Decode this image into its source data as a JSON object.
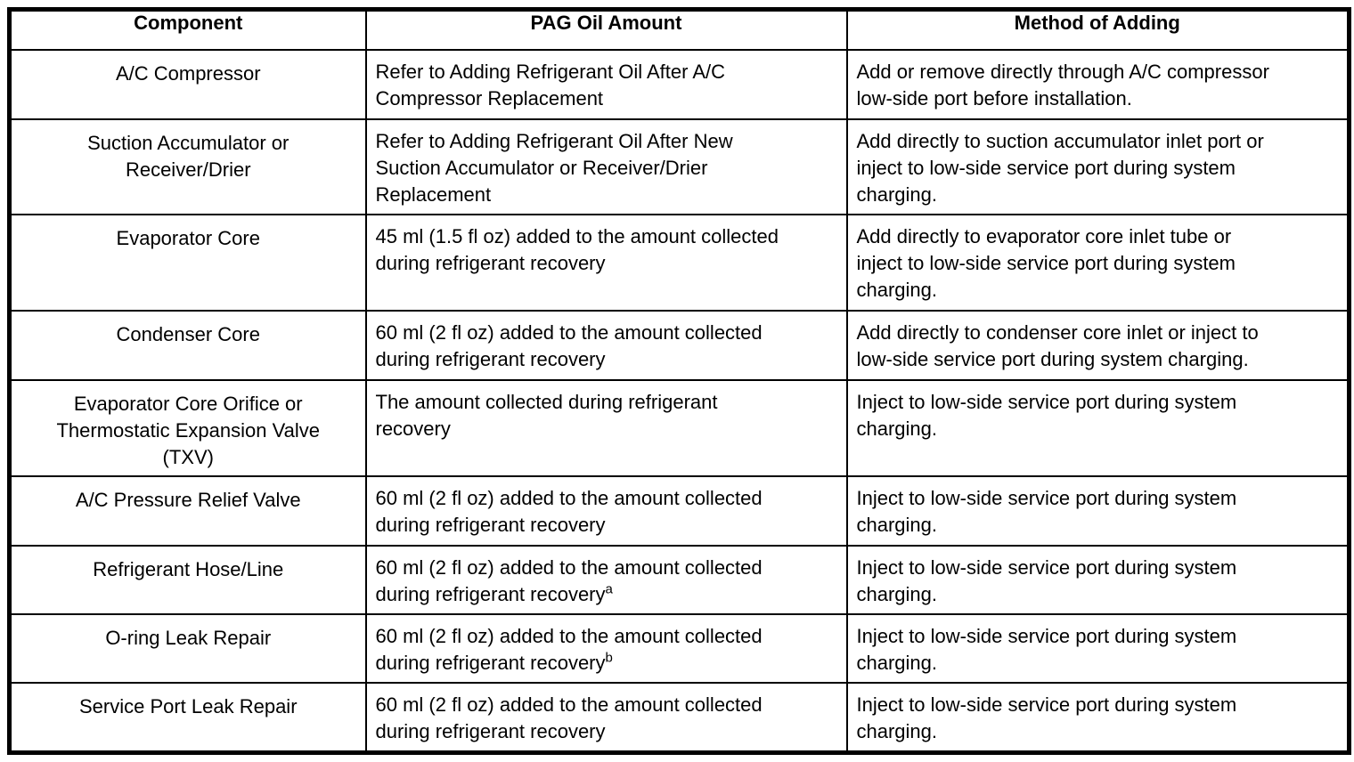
{
  "colors": {
    "background": "#ffffff",
    "border": "#000000",
    "text": "#000000"
  },
  "table": {
    "columns": [
      "Component",
      "PAG Oil Amount",
      "Method of Adding"
    ],
    "rows": [
      {
        "component": "A/C Compressor",
        "pag_oil_amount": "Refer to Adding Refrigerant Oil After A/C Compressor Replacement",
        "footnote_marker": "",
        "method_of_adding": "Add or remove directly through A/C compressor low-side port before installation."
      },
      {
        "component": "Suction Accumulator or Receiver/Drier",
        "pag_oil_amount": "Refer to Adding Refrigerant Oil After New Suction Accumulator or Receiver/Drier Replacement",
        "footnote_marker": "",
        "method_of_adding": "Add directly to suction accumulator inlet port or inject to low-side service port during system charging."
      },
      {
        "component": "Evaporator Core",
        "pag_oil_amount": "45 ml (1.5 fl oz) added to the amount collected during refrigerant recovery",
        "footnote_marker": "",
        "method_of_adding": "Add directly to evaporator core inlet tube or inject to low-side service port during system charging."
      },
      {
        "component": "Condenser Core",
        "pag_oil_amount": "60 ml (2 fl oz) added to the amount collected during refrigerant recovery",
        "footnote_marker": "",
        "method_of_adding": "Add directly to condenser core inlet or inject to low-side service port during system charging."
      },
      {
        "component": "Evaporator Core Orifice or Thermostatic Expansion Valve (TXV)",
        "pag_oil_amount": "The amount collected during refrigerant recovery",
        "footnote_marker": "",
        "method_of_adding": "Inject to low-side service port during system charging."
      },
      {
        "component": "A/C Pressure Relief Valve",
        "pag_oil_amount": "60 ml (2 fl oz) added to the amount collected during refrigerant recovery",
        "footnote_marker": "",
        "method_of_adding": "Inject to low-side service port during system charging."
      },
      {
        "component": "Refrigerant Hose/Line",
        "pag_oil_amount": "60 ml (2 fl oz) added to the amount collected during refrigerant recovery",
        "footnote_marker": "a",
        "method_of_adding": "Inject to low-side service port during system charging."
      },
      {
        "component": "O-ring Leak Repair",
        "pag_oil_amount": "60 ml (2 fl oz) added to the amount collected during refrigerant recovery",
        "footnote_marker": "b",
        "method_of_adding": "Inject to low-side service port during system charging."
      },
      {
        "component": "Service Port Leak Repair",
        "pag_oil_amount": "60 ml (2 fl oz) added to the amount collected during refrigerant recovery",
        "footnote_marker": "",
        "method_of_adding": "Inject to low-side service port during system charging."
      }
    ]
  }
}
